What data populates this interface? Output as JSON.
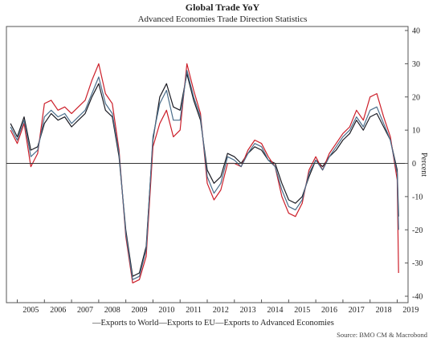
{
  "chart_data": {
    "type": "line",
    "title": "Global Trade YoY",
    "subtitle": "Advanced Economies Trade Direction Statistics",
    "ylabel": "Percent",
    "ylim": [
      -40,
      40
    ],
    "yticks": [
      40,
      30,
      20,
      10,
      0,
      -10,
      -20,
      -30,
      -40
    ],
    "xlim": [
      2004.6,
      2019.4
    ],
    "x_ticks": [
      "2005",
      "2006",
      "2007",
      "2008",
      "2009",
      "2010",
      "2011",
      "2012",
      "2013",
      "2014",
      "2015",
      "2016",
      "2017",
      "2018",
      "2019"
    ],
    "grid": false,
    "zero_line": true,
    "legend": "bottom",
    "legend_text": "—Exports to World—Exports to EU—Exports to Advanced Economies",
    "source": "Source: BMO CM & Macrobond",
    "series": [
      {
        "name": "Exports to World",
        "color": "#1c1c24",
        "points": [
          [
            2004.75,
            12
          ],
          [
            2005.0,
            8
          ],
          [
            2005.25,
            14
          ],
          [
            2005.5,
            4
          ],
          [
            2005.75,
            5
          ],
          [
            2006.0,
            12
          ],
          [
            2006.25,
            15
          ],
          [
            2006.5,
            13
          ],
          [
            2006.75,
            14
          ],
          [
            2007.0,
            11
          ],
          [
            2007.25,
            13
          ],
          [
            2007.5,
            15
          ],
          [
            2007.75,
            20
          ],
          [
            2008.0,
            24
          ],
          [
            2008.25,
            16
          ],
          [
            2008.5,
            14
          ],
          [
            2008.75,
            2
          ],
          [
            2009.0,
            -20
          ],
          [
            2009.25,
            -34
          ],
          [
            2009.5,
            -33
          ],
          [
            2009.75,
            -25
          ],
          [
            2010.0,
            7
          ],
          [
            2010.25,
            20
          ],
          [
            2010.5,
            24
          ],
          [
            2010.75,
            17
          ],
          [
            2011.0,
            16
          ],
          [
            2011.25,
            27
          ],
          [
            2011.5,
            19
          ],
          [
            2011.75,
            13
          ],
          [
            2012.0,
            -2
          ],
          [
            2012.25,
            -6
          ],
          [
            2012.5,
            -4
          ],
          [
            2012.75,
            3
          ],
          [
            2013.0,
            2
          ],
          [
            2013.25,
            0
          ],
          [
            2013.5,
            3
          ],
          [
            2013.75,
            5
          ],
          [
            2014.0,
            4
          ],
          [
            2014.25,
            1
          ],
          [
            2014.5,
            0
          ],
          [
            2014.75,
            -6
          ],
          [
            2015.0,
            -11
          ],
          [
            2015.25,
            -12
          ],
          [
            2015.5,
            -10
          ],
          [
            2015.75,
            -4
          ],
          [
            2016.0,
            1
          ],
          [
            2016.25,
            -1
          ],
          [
            2016.5,
            2
          ],
          [
            2016.75,
            4
          ],
          [
            2017.0,
            7
          ],
          [
            2017.25,
            9
          ],
          [
            2017.5,
            13
          ],
          [
            2017.75,
            10
          ],
          [
            2018.0,
            14
          ],
          [
            2018.25,
            15
          ],
          [
            2018.5,
            11
          ],
          [
            2018.75,
            7
          ],
          [
            2019.0,
            -2
          ],
          [
            2019.05,
            -16
          ]
        ]
      },
      {
        "name": "Exports to EU",
        "color": "#cc1f2a",
        "points": [
          [
            2004.75,
            10
          ],
          [
            2005.0,
            6
          ],
          [
            2005.25,
            12
          ],
          [
            2005.5,
            -1
          ],
          [
            2005.75,
            3
          ],
          [
            2006.0,
            18
          ],
          [
            2006.25,
            19
          ],
          [
            2006.5,
            16
          ],
          [
            2006.75,
            17
          ],
          [
            2007.0,
            15
          ],
          [
            2007.25,
            17
          ],
          [
            2007.5,
            19
          ],
          [
            2007.75,
            25
          ],
          [
            2008.0,
            30
          ],
          [
            2008.25,
            21
          ],
          [
            2008.5,
            18
          ],
          [
            2008.75,
            4
          ],
          [
            2009.0,
            -22
          ],
          [
            2009.25,
            -36
          ],
          [
            2009.5,
            -35
          ],
          [
            2009.75,
            -28
          ],
          [
            2010.0,
            5
          ],
          [
            2010.25,
            12
          ],
          [
            2010.5,
            16
          ],
          [
            2010.75,
            8
          ],
          [
            2011.0,
            10
          ],
          [
            2011.25,
            30
          ],
          [
            2011.5,
            22
          ],
          [
            2011.75,
            15
          ],
          [
            2012.0,
            -6
          ],
          [
            2012.25,
            -11
          ],
          [
            2012.5,
            -8
          ],
          [
            2012.75,
            0
          ],
          [
            2013.0,
            0
          ],
          [
            2013.25,
            -1
          ],
          [
            2013.5,
            4
          ],
          [
            2013.75,
            7
          ],
          [
            2014.0,
            6
          ],
          [
            2014.25,
            2
          ],
          [
            2014.5,
            -1
          ],
          [
            2014.75,
            -10
          ],
          [
            2015.0,
            -15
          ],
          [
            2015.25,
            -16
          ],
          [
            2015.5,
            -12
          ],
          [
            2015.75,
            -2
          ],
          [
            2016.0,
            2
          ],
          [
            2016.25,
            -2
          ],
          [
            2016.5,
            3
          ],
          [
            2016.75,
            6
          ],
          [
            2017.0,
            9
          ],
          [
            2017.25,
            11
          ],
          [
            2017.5,
            16
          ],
          [
            2017.75,
            13
          ],
          [
            2018.0,
            20
          ],
          [
            2018.25,
            21
          ],
          [
            2018.5,
            14
          ],
          [
            2018.75,
            8
          ],
          [
            2019.0,
            -5
          ],
          [
            2019.05,
            -33
          ]
        ]
      },
      {
        "name": "Exports to Advanced Economies",
        "color": "#4a6d8a",
        "points": [
          [
            2004.75,
            11
          ],
          [
            2005.0,
            7
          ],
          [
            2005.25,
            13
          ],
          [
            2005.5,
            2
          ],
          [
            2005.75,
            4
          ],
          [
            2006.0,
            14
          ],
          [
            2006.25,
            16
          ],
          [
            2006.5,
            14
          ],
          [
            2006.75,
            15
          ],
          [
            2007.0,
            12
          ],
          [
            2007.25,
            14
          ],
          [
            2007.5,
            16
          ],
          [
            2007.75,
            21
          ],
          [
            2008.0,
            26
          ],
          [
            2008.25,
            18
          ],
          [
            2008.5,
            15
          ],
          [
            2008.75,
            3
          ],
          [
            2009.0,
            -21
          ],
          [
            2009.25,
            -35
          ],
          [
            2009.5,
            -34
          ],
          [
            2009.75,
            -26
          ],
          [
            2010.0,
            8
          ],
          [
            2010.25,
            18
          ],
          [
            2010.5,
            22
          ],
          [
            2010.75,
            13
          ],
          [
            2011.0,
            13
          ],
          [
            2011.25,
            28
          ],
          [
            2011.5,
            20
          ],
          [
            2011.75,
            14
          ],
          [
            2012.0,
            -4
          ],
          [
            2012.25,
            -9
          ],
          [
            2012.5,
            -6
          ],
          [
            2012.75,
            2
          ],
          [
            2013.0,
            1
          ],
          [
            2013.25,
            -1
          ],
          [
            2013.5,
            3
          ],
          [
            2013.75,
            6
          ],
          [
            2014.0,
            5
          ],
          [
            2014.25,
            1
          ],
          [
            2014.5,
            -1
          ],
          [
            2014.75,
            -8
          ],
          [
            2015.0,
            -13
          ],
          [
            2015.25,
            -14
          ],
          [
            2015.5,
            -11
          ],
          [
            2015.75,
            -3
          ],
          [
            2016.0,
            1
          ],
          [
            2016.25,
            -2
          ],
          [
            2016.5,
            2
          ],
          [
            2016.75,
            5
          ],
          [
            2017.0,
            8
          ],
          [
            2017.25,
            10
          ],
          [
            2017.5,
            14
          ],
          [
            2017.75,
            11
          ],
          [
            2018.0,
            16
          ],
          [
            2018.25,
            17
          ],
          [
            2018.5,
            12
          ],
          [
            2018.75,
            7
          ],
          [
            2019.0,
            -3
          ],
          [
            2019.05,
            -20
          ]
        ]
      }
    ]
  }
}
